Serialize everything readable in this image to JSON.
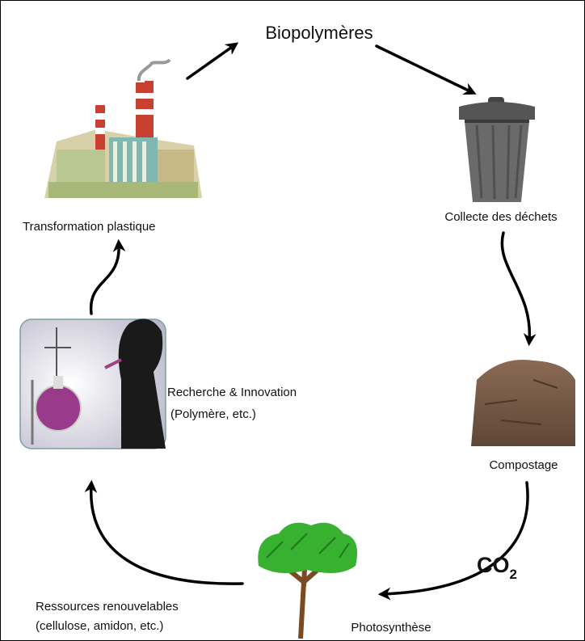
{
  "title": "Biopolymères",
  "nodes": [
    {
      "label": "Collecte des déchets"
    },
    {
      "label": "Compostage"
    },
    {
      "label": "Photosynthèse"
    },
    {
      "label_lines": [
        "Ressources renouvelables",
        "(cellulose, amidon, etc.)"
      ]
    },
    {
      "label_lines": [
        "Recherche & Innovation",
        "(Polymère, etc.)"
      ]
    },
    {
      "label": "Transformation plastique"
    }
  ],
  "co2": {
    "base": "CO",
    "subscript": "2"
  }
}
